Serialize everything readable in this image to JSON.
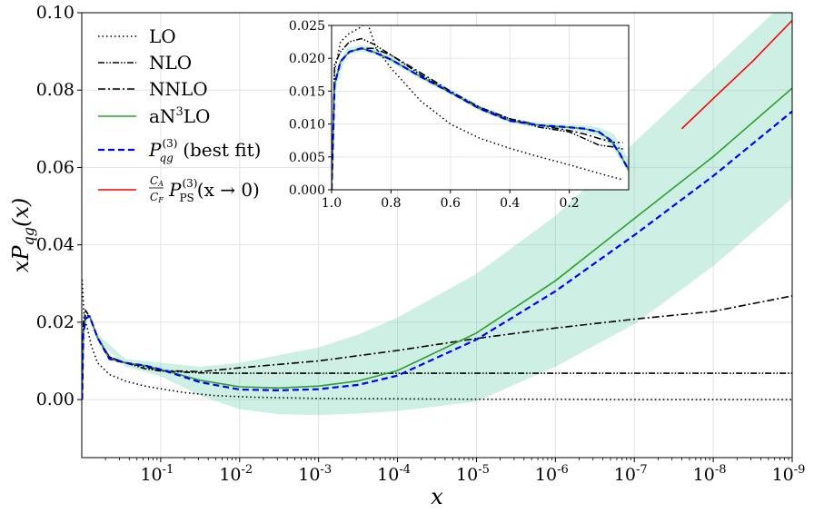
{
  "chart_data": {
    "type": "line",
    "xlabel": "x",
    "ylabel": "xP",
    "ylabel_sub": "qg",
    "ylabel_arg": "(x)",
    "ylim": [
      -0.015,
      0.1
    ],
    "yticks": [
      "0.00",
      "0.02",
      "0.04",
      "0.06",
      "0.08",
      "0.10"
    ],
    "ytick_values": [
      0.0,
      0.02,
      0.04,
      0.06,
      0.08,
      0.1
    ],
    "xscale": "log (reversed)",
    "xlim_log10": [
      0,
      -9
    ],
    "xticks": [
      {
        "base": "10",
        "exp": "-1",
        "value": -1
      },
      {
        "base": "10",
        "exp": "-2",
        "value": -2
      },
      {
        "base": "10",
        "exp": "-3",
        "value": -3
      },
      {
        "base": "10",
        "exp": "-4",
        "value": -4
      },
      {
        "base": "10",
        "exp": "-5",
        "value": -5
      },
      {
        "base": "10",
        "exp": "-6",
        "value": -6
      },
      {
        "base": "10",
        "exp": "-7",
        "value": -7
      },
      {
        "base": "10",
        "exp": "-8",
        "value": -8
      },
      {
        "base": "10",
        "exp": "-9",
        "value": -9
      }
    ],
    "grid": true,
    "legend": {
      "placement": "top-left",
      "entries": [
        {
          "label": "LO",
          "color": "#000000",
          "style": "dotted"
        },
        {
          "label": "NLO",
          "color": "#000000",
          "style": "dash-dot-dot"
        },
        {
          "label": "NNLO",
          "color": "#000000",
          "style": "dash-dot"
        },
        {
          "label": "aN",
          "sup": "3",
          "label_tail": "LO",
          "color": "#2ca02c",
          "style": "solid"
        },
        {
          "label": "P",
          "sub": "qg",
          "sup": "(3)",
          "label_tail": " (best fit)",
          "color": "#0000ff",
          "style": "dashed"
        },
        {
          "label_frac_num": "C",
          "label_frac_num_sub": "A",
          "label_frac_den": "C",
          "label_frac_den_sub": "F",
          "label": "P",
          "sub": "PS",
          "sup": "(3)",
          "label_tail": "(x → 0)",
          "color": "#ff0000",
          "style": "solid"
        }
      ]
    },
    "series": [
      {
        "name": "LO",
        "color": "#000000",
        "log10x": [
          -0.005,
          -0.03,
          -0.07,
          -0.12,
          -0.2,
          -0.35,
          -0.55,
          -0.8,
          -1.0,
          -1.3,
          -1.7,
          -2.2,
          -3,
          -4,
          -5,
          -6,
          -7,
          -8,
          -9
        ],
        "y": [
          0.031,
          0.021,
          0.0185,
          0.014,
          0.0095,
          0.0065,
          0.0048,
          0.0035,
          0.0028,
          0.0018,
          0.001,
          0.0006,
          0.0003,
          0.0002,
          0.0001,
          0.0001,
          0.0,
          0.0,
          0.0
        ]
      },
      {
        "name": "NLO",
        "color": "#000000",
        "log10x": [
          -0.005,
          -0.02,
          -0.05,
          -0.1,
          -0.2,
          -0.35,
          -0.55,
          -0.8,
          -1.0,
          -1.5,
          -2,
          -3,
          -4,
          -5,
          -6,
          -7,
          -8,
          -9
        ],
        "y": [
          0.0,
          0.02,
          0.023,
          0.0215,
          0.016,
          0.011,
          0.0095,
          0.008,
          0.0074,
          0.0069,
          0.0068,
          0.0068,
          0.0068,
          0.0068,
          0.0068,
          0.0068,
          0.0068,
          0.0068
        ]
      },
      {
        "name": "NNLO",
        "color": "#000000",
        "log10x": [
          -0.005,
          -0.02,
          -0.05,
          -0.1,
          -0.2,
          -0.35,
          -0.55,
          -0.8,
          -1.0,
          -1.5,
          -2,
          -3,
          -4,
          -5,
          -6,
          -7,
          -8,
          -9
        ],
        "y": [
          0.0,
          0.018,
          0.022,
          0.0215,
          0.016,
          0.011,
          0.0095,
          0.0085,
          0.0075,
          0.0072,
          0.0082,
          0.01,
          0.0127,
          0.0158,
          0.0185,
          0.0208,
          0.0228,
          0.0268
        ]
      },
      {
        "name": "aN3LO",
        "color": "#2ca02c",
        "log10x": [
          -0.005,
          -0.02,
          -0.05,
          -0.1,
          -0.2,
          -0.35,
          -0.55,
          -0.8,
          -1.0,
          -1.5,
          -2,
          -2.5,
          -3,
          -3.5,
          -4,
          -5,
          -6,
          -7,
          -8,
          -9
        ],
        "y": [
          0.0,
          0.017,
          0.021,
          0.0215,
          0.016,
          0.0105,
          0.0095,
          0.0088,
          0.0078,
          0.005,
          0.0033,
          0.003,
          0.0035,
          0.0048,
          0.0075,
          0.0172,
          0.0307,
          0.0468,
          0.0628,
          0.0805
        ]
      },
      {
        "name": "best fit",
        "color": "#0000ff",
        "log10x": [
          -0.005,
          -0.02,
          -0.05,
          -0.1,
          -0.2,
          -0.35,
          -0.55,
          -0.8,
          -1.0,
          -1.5,
          -2,
          -2.5,
          -3,
          -3.5,
          -4,
          -5,
          -6,
          -7,
          -8,
          -9
        ],
        "y": [
          0.0,
          0.017,
          0.021,
          0.0215,
          0.016,
          0.0105,
          0.0095,
          0.0088,
          0.0078,
          0.0045,
          0.0026,
          0.0024,
          0.0027,
          0.0038,
          0.0062,
          0.0155,
          0.028,
          0.0425,
          0.0578,
          0.0745
        ]
      },
      {
        "name": "PS small-x",
        "color": "#ff0000",
        "log10x": [
          -7.6,
          -8.0,
          -8.5,
          -9.0
        ],
        "y": [
          0.07,
          0.0778,
          0.0875,
          0.098
        ]
      }
    ],
    "band": {
      "name": "aN3LO uncertainty",
      "color": "#66cdaa",
      "log10x": [
        -0.2,
        -0.55,
        -1.0,
        -1.5,
        -2,
        -2.5,
        -3,
        -3.5,
        -4,
        -5,
        -6,
        -7,
        -8,
        -9
      ],
      "lower": [
        0.0155,
        0.0085,
        0.006,
        0.001,
        -0.0025,
        -0.0038,
        -0.004,
        -0.0036,
        -0.003,
        -0.0005,
        0.0085,
        0.0195,
        0.0345,
        0.052
      ],
      "upper": [
        0.017,
        0.0105,
        0.0095,
        0.0085,
        0.0095,
        0.0115,
        0.0135,
        0.0168,
        0.0212,
        0.0325,
        0.0475,
        0.0665,
        0.0855,
        0.1045
      ]
    },
    "inset": {
      "xlim": [
        1.0,
        0.0
      ],
      "ylim": [
        0.0,
        0.025
      ],
      "xticks": [
        "1.0",
        "0.8",
        "0.6",
        "0.4",
        "0.2"
      ],
      "xtick_values": [
        1.0,
        0.8,
        0.6,
        0.4,
        0.2
      ],
      "yticks": [
        "0.000",
        "0.005",
        "0.010",
        "0.015",
        "0.020",
        "0.025"
      ],
      "ytick_values": [
        0.0,
        0.005,
        0.01,
        0.015,
        0.02,
        0.025
      ],
      "series": [
        {
          "name": "LO",
          "color": "#000000",
          "x": [
            1.0,
            0.99,
            0.97,
            0.94,
            0.91,
            0.88,
            0.85,
            0.8,
            0.75,
            0.7,
            0.6,
            0.5,
            0.4,
            0.3,
            0.2,
            0.1,
            0.02
          ],
          "y": [
            0.0,
            0.018,
            0.0225,
            0.0238,
            0.0245,
            0.0255,
            0.0215,
            0.0185,
            0.016,
            0.0135,
            0.01,
            0.0078,
            0.0063,
            0.005,
            0.0038,
            0.0025,
            0.0015
          ]
        },
        {
          "name": "NLO",
          "color": "#000000",
          "x": [
            1.0,
            0.99,
            0.97,
            0.94,
            0.9,
            0.86,
            0.8,
            0.7,
            0.6,
            0.5,
            0.4,
            0.3,
            0.2,
            0.15,
            0.1,
            0.05,
            0.02
          ],
          "y": [
            0.0,
            0.019,
            0.021,
            0.0225,
            0.023,
            0.0222,
            0.0205,
            0.0175,
            0.0148,
            0.0125,
            0.0108,
            0.0095,
            0.0088,
            0.0078,
            0.0068,
            0.0065,
            0.0062
          ]
        },
        {
          "name": "NNLO",
          "color": "#000000",
          "x": [
            1.0,
            0.99,
            0.97,
            0.94,
            0.9,
            0.86,
            0.8,
            0.7,
            0.6,
            0.5,
            0.4,
            0.3,
            0.2,
            0.15,
            0.1,
            0.05,
            0.02
          ],
          "y": [
            0.0,
            0.016,
            0.0195,
            0.021,
            0.0215,
            0.0215,
            0.0205,
            0.0178,
            0.015,
            0.0125,
            0.0108,
            0.0098,
            0.009,
            0.0085,
            0.0078,
            0.0072,
            0.0072
          ]
        },
        {
          "name": "aN3LO",
          "color": "#2ca02c",
          "x": [
            1.0,
            0.99,
            0.97,
            0.94,
            0.9,
            0.86,
            0.8,
            0.7,
            0.6,
            0.5,
            0.4,
            0.3,
            0.2,
            0.15,
            0.1,
            0.06,
            0.03,
            0.0
          ],
          "y": [
            0.0,
            0.016,
            0.0195,
            0.021,
            0.0215,
            0.021,
            0.0198,
            0.0172,
            0.0148,
            0.0123,
            0.0105,
            0.0098,
            0.0095,
            0.0093,
            0.0088,
            0.0075,
            0.0055,
            0.003
          ]
        },
        {
          "name": "best fit",
          "color": "#0000ff",
          "x": [
            1.0,
            0.99,
            0.97,
            0.94,
            0.9,
            0.86,
            0.8,
            0.7,
            0.6,
            0.5,
            0.4,
            0.3,
            0.2,
            0.15,
            0.1,
            0.06,
            0.03,
            0.0
          ],
          "y": [
            0.0,
            0.016,
            0.0195,
            0.021,
            0.0215,
            0.021,
            0.0198,
            0.0172,
            0.0148,
            0.0123,
            0.0105,
            0.0098,
            0.0095,
            0.0093,
            0.0088,
            0.0075,
            0.0055,
            0.003
          ]
        }
      ],
      "band": {
        "x": [
          0.99,
          0.95,
          0.9,
          0.85,
          0.8,
          0.7,
          0.6,
          0.5,
          0.4,
          0.3,
          0.2,
          0.15,
          0.1,
          0.05,
          0.0
        ],
        "lower": [
          0.015,
          0.0205,
          0.021,
          0.0205,
          0.0193,
          0.0168,
          0.0145,
          0.012,
          0.0102,
          0.0094,
          0.009,
          0.0088,
          0.0082,
          0.0062,
          0.0025
        ],
        "upper": [
          0.017,
          0.0215,
          0.022,
          0.0215,
          0.0203,
          0.0178,
          0.0153,
          0.0128,
          0.0109,
          0.0102,
          0.0098,
          0.0098,
          0.0095,
          0.0085,
          0.0045
        ]
      }
    }
  }
}
